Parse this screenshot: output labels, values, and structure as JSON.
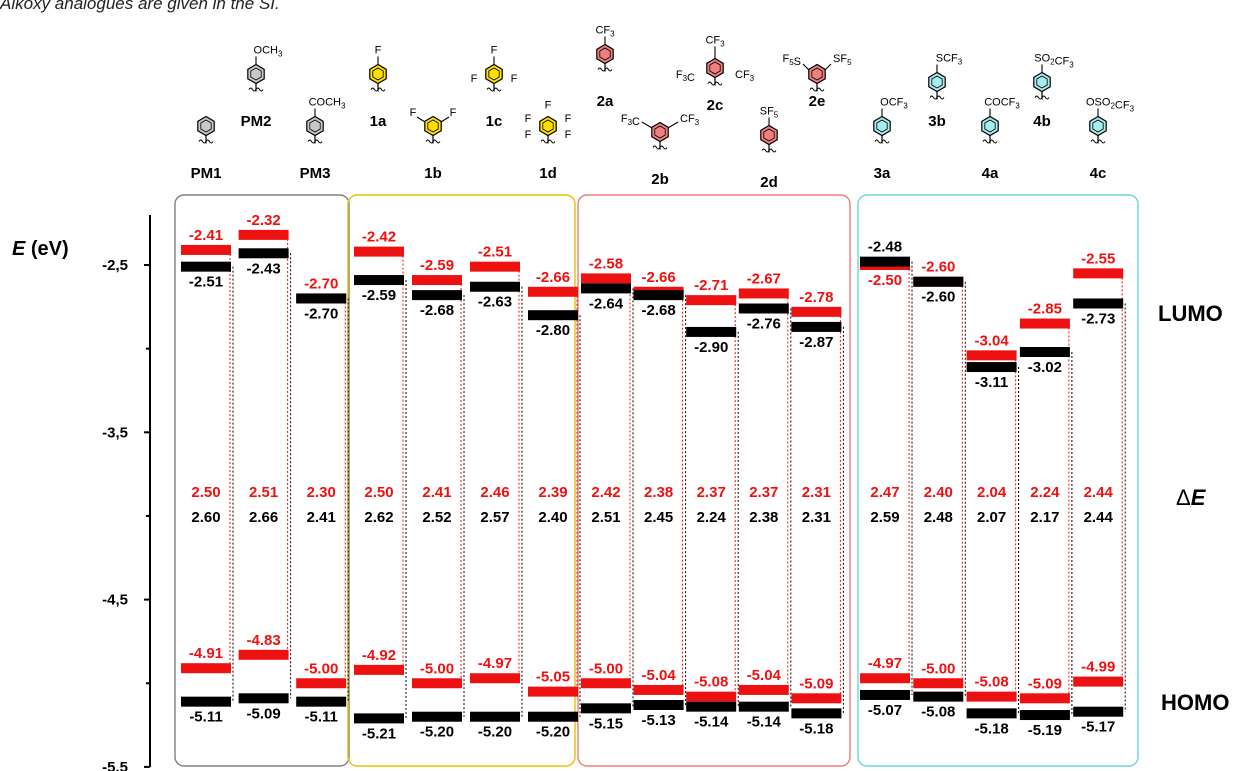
{
  "caption_fragment": "Alkoxy analogues are given in the SI.",
  "chart_data": {
    "type": "energy-level-diagram",
    "y_axis": {
      "label_var": "E",
      "label_unit": "(eV)",
      "range": [
        -5.5,
        -2.5
      ],
      "ticks": [
        {
          "value": -2.5,
          "label": "-2,5"
        },
        {
          "value": -3.5,
          "label": "-3,5"
        },
        {
          "value": -4.5,
          "label": "-4,5"
        },
        {
          "value": -5.5,
          "label": "-5.5"
        }
      ]
    },
    "side_labels": {
      "lumo": "LUMO",
      "gap_var": "E",
      "homo": "HOMO"
    },
    "series_colors": {
      "red": "#ee1111",
      "black": "#000000"
    },
    "groups": [
      {
        "border_color": "#808080",
        "compounds": [
          "PM1",
          "PM2",
          "PM3"
        ]
      },
      {
        "border_color": "#e6c200",
        "compounds": [
          "1a",
          "1b",
          "1c",
          "1d"
        ]
      },
      {
        "border_color": "#f07a7a",
        "compounds": [
          "2a",
          "2b",
          "2c",
          "2d",
          "2e"
        ]
      },
      {
        "border_color": "#6fd6dc",
        "compounds": [
          "3a",
          "3b",
          "4a",
          "4b",
          "4c"
        ]
      }
    ],
    "compounds": [
      {
        "label": "PM1",
        "lumo_red": -2.41,
        "lumo_black": -2.51,
        "gap_red": "2.50",
        "gap_black": "2.60",
        "homo_red": -4.91,
        "homo_black": -5.11
      },
      {
        "label": "PM2",
        "lumo_red": -2.32,
        "lumo_black": -2.43,
        "gap_red": "2.51",
        "gap_black": "2.66",
        "homo_red": -4.83,
        "homo_black": -5.09
      },
      {
        "label": "PM3",
        "lumo_red": -2.7,
        "lumo_black": -2.7,
        "gap_red": "2.30",
        "gap_black": "2.41",
        "homo_red": -5.0,
        "homo_black": -5.11
      },
      {
        "label": "1a",
        "lumo_red": -2.42,
        "lumo_black": -2.59,
        "gap_red": "2.50",
        "gap_black": "2.62",
        "homo_red": -4.92,
        "homo_black": -5.21
      },
      {
        "label": "1b",
        "lumo_red": -2.59,
        "lumo_black": -2.68,
        "gap_red": "2.41",
        "gap_black": "2.52",
        "homo_red": -5.0,
        "homo_black": -5.2
      },
      {
        "label": "1c",
        "lumo_red": -2.51,
        "lumo_black": -2.63,
        "gap_red": "2.46",
        "gap_black": "2.57",
        "homo_red": -4.97,
        "homo_black": -5.2
      },
      {
        "label": "1d",
        "lumo_red": -2.66,
        "lumo_black": -2.8,
        "gap_red": "2.39",
        "gap_black": "2.40",
        "homo_red": -5.05,
        "homo_black": -5.2
      },
      {
        "label": "2a",
        "lumo_red": -2.58,
        "lumo_black": -2.64,
        "gap_red": "2.42",
        "gap_black": "2.51",
        "homo_red": -5.0,
        "homo_black": -5.15
      },
      {
        "label": "2b",
        "lumo_red": -2.66,
        "lumo_black": -2.68,
        "gap_red": "2.38",
        "gap_black": "2.45",
        "homo_red": -5.04,
        "homo_black": -5.13
      },
      {
        "label": "2c",
        "lumo_red": -2.71,
        "lumo_black": -2.9,
        "gap_red": "2.37",
        "gap_black": "2.24",
        "homo_red": -5.08,
        "homo_black": -5.14
      },
      {
        "label": "2d",
        "lumo_red": -2.67,
        "lumo_black": -2.76,
        "gap_red": "2.37",
        "gap_black": "2.38",
        "homo_red": -5.04,
        "homo_black": -5.14
      },
      {
        "label": "2e",
        "lumo_red": -2.78,
        "lumo_black": -2.87,
        "gap_red": "2.31",
        "gap_black": "2.31",
        "homo_red": -5.09,
        "homo_black": -5.18
      },
      {
        "label": "3a",
        "lumo_red": -2.5,
        "lumo_black": -2.48,
        "gap_red": "2.47",
        "gap_black": "2.59",
        "homo_red": -4.97,
        "homo_black": -5.07
      },
      {
        "label": "3b",
        "lumo_red": -2.6,
        "lumo_black": -2.6,
        "gap_red": "2.40",
        "gap_black": "2.48",
        "homo_red": -5.0,
        "homo_black": -5.08
      },
      {
        "label": "4a",
        "lumo_red": -3.04,
        "lumo_black": -3.11,
        "gap_red": "2.04",
        "gap_black": "2.07",
        "homo_red": -5.08,
        "homo_black": -5.18
      },
      {
        "label": "4b",
        "lumo_red": -2.85,
        "lumo_black": -3.02,
        "gap_red": "2.24",
        "gap_black": "2.17",
        "homo_red": -5.09,
        "homo_black": -5.19
      },
      {
        "label": "4c",
        "lumo_red": -2.55,
        "lumo_black": -2.73,
        "gap_red": "2.44",
        "gap_black": "2.44",
        "homo_red": -4.99,
        "homo_black": -5.17
      }
    ],
    "structures": [
      {
        "id": "PM1",
        "color": "#c8c8c8"
      },
      {
        "id": "PM2",
        "color": "#c8c8c8",
        "substituents": [
          "OCH3"
        ]
      },
      {
        "id": "PM3",
        "color": "#c8c8c8",
        "substituents": [
          "COCH3"
        ]
      },
      {
        "id": "1a",
        "color": "#ffe000",
        "substituents": [
          "F"
        ]
      },
      {
        "id": "1b",
        "color": "#ffe000",
        "substituents": [
          "F",
          "F"
        ]
      },
      {
        "id": "1c",
        "color": "#ffe000",
        "substituents": [
          "F",
          "F",
          "F"
        ]
      },
      {
        "id": "1d",
        "color": "#ffe000",
        "substituents": [
          "F",
          "F",
          "F",
          "F",
          "F"
        ]
      },
      {
        "id": "2a",
        "color": "#f08080",
        "substituents": [
          "CF3"
        ]
      },
      {
        "id": "2b",
        "color": "#f08080",
        "substituents": [
          "F3C",
          "CF3"
        ]
      },
      {
        "id": "2c",
        "color": "#f08080",
        "substituents": [
          "CF3",
          "F3C",
          "CF3"
        ]
      },
      {
        "id": "2d",
        "color": "#f08080",
        "substituents": [
          "SF5"
        ]
      },
      {
        "id": "2e",
        "color": "#f08080",
        "substituents": [
          "F5S",
          "SF5"
        ]
      },
      {
        "id": "3a",
        "color": "#a8ecec",
        "substituents": [
          "OCF3"
        ]
      },
      {
        "id": "3b",
        "color": "#a8ecec",
        "substituents": [
          "SCF3"
        ]
      },
      {
        "id": "4a",
        "color": "#a8ecec",
        "substituents": [
          "COCF3"
        ]
      },
      {
        "id": "4b",
        "color": "#a8ecec",
        "substituents": [
          "SO2CF3"
        ]
      },
      {
        "id": "4c",
        "color": "#a8ecec",
        "substituents": [
          "OSO2CF3"
        ]
      }
    ]
  }
}
